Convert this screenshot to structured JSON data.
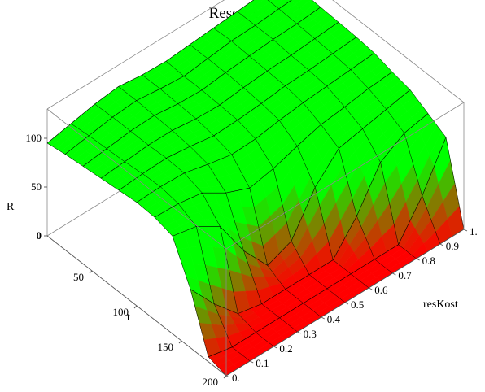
{
  "chart_data": {
    "type": "surface3d",
    "title": "Resource Stock",
    "xlabel": "t",
    "ylabel": "resKost",
    "zlabel": "R",
    "xlim": [
      0,
      200
    ],
    "ylim": [
      0,
      1
    ],
    "zlim": [
      0,
      130
    ],
    "x_ticks": [
      "50",
      "100",
      "150",
      "200"
    ],
    "y_ticks": [
      "0.",
      "0.1",
      "0.2",
      "0.3",
      "0.4",
      "0.5",
      "0.6",
      "0.7",
      "0.8",
      "0.9",
      "1."
    ],
    "z_ticks": [
      "0",
      "50",
      "100"
    ],
    "t_grid": [
      0,
      20,
      40,
      60,
      80,
      100,
      120,
      140,
      160,
      180,
      200
    ],
    "k_grid": [
      0,
      0.1,
      0.2,
      0.3,
      0.4,
      0.5,
      0.6,
      0.7,
      0.8,
      0.9,
      1.0
    ],
    "R_values": [
      [
        95,
        100,
        105,
        108,
        105,
        104,
        106,
        108,
        110,
        112,
        114
      ],
      [
        98,
        102,
        106,
        108,
        105,
        103,
        106,
        109,
        110,
        112,
        114
      ],
      [
        100,
        103,
        106,
        107,
        104,
        103,
        106,
        108,
        110,
        111,
        113
      ],
      [
        102,
        104,
        106,
        106,
        103,
        102,
        105,
        107,
        108,
        110,
        112
      ],
      [
        104,
        106,
        107,
        104,
        100,
        101,
        103,
        106,
        107,
        109,
        111
      ],
      [
        106,
        107,
        106,
        100,
        95,
        96,
        100,
        103,
        105,
        107,
        109
      ],
      [
        105,
        104,
        100,
        85,
        75,
        80,
        88,
        95,
        98,
        102,
        104
      ],
      [
        100,
        95,
        80,
        40,
        10,
        20,
        60,
        85,
        90,
        95,
        100
      ],
      [
        60,
        30,
        5,
        0,
        0,
        0,
        0,
        30,
        70,
        85,
        90
      ],
      [
        5,
        0,
        0,
        0,
        0,
        0,
        0,
        0,
        0,
        35,
        80
      ],
      [
        0,
        0,
        0,
        0,
        0,
        0,
        0,
        0,
        0,
        0,
        0
      ]
    ],
    "colors": {
      "high": "#00ff00",
      "low": "#ff0000",
      "mesh": "#000000"
    },
    "box": true
  }
}
